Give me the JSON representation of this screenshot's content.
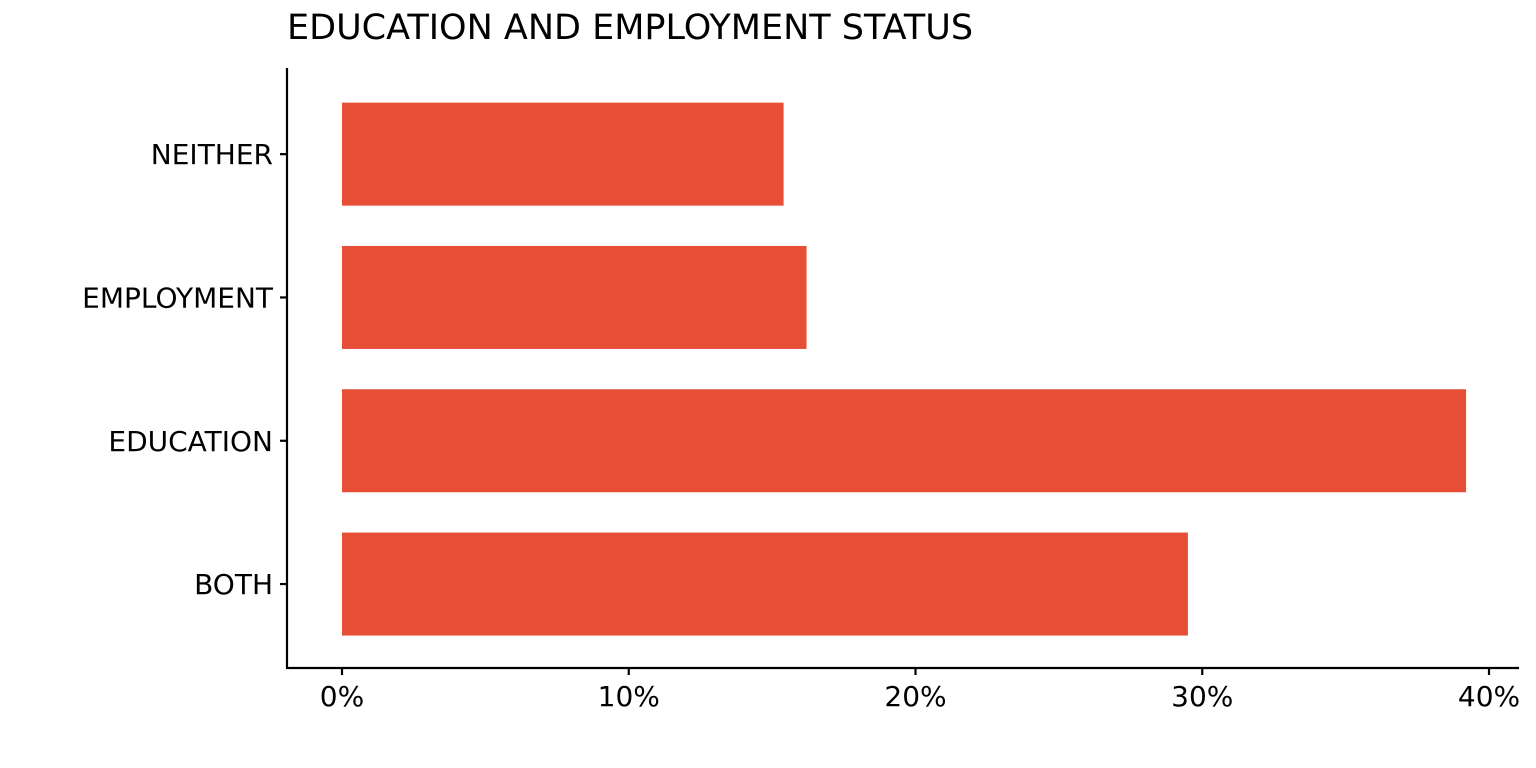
{
  "chart_data": {
    "type": "bar",
    "orientation": "horizontal",
    "title": "EDUCATION AND EMPLOYMENT STATUS",
    "xlabel": "",
    "ylabel": "",
    "categories": [
      "BOTH",
      "EDUCATION",
      "EMPLOYMENT",
      "NEITHER"
    ],
    "values": [
      29.5,
      39.2,
      16.2,
      15.4
    ],
    "xlim": [
      0,
      40
    ],
    "x_ticks": [
      "0%",
      "10%",
      "20%",
      "30%",
      "40%"
    ],
    "x_tick_values": [
      0,
      10,
      20,
      30,
      40
    ],
    "grid": false,
    "legend": "none",
    "bar_color": "#e64e36"
  }
}
